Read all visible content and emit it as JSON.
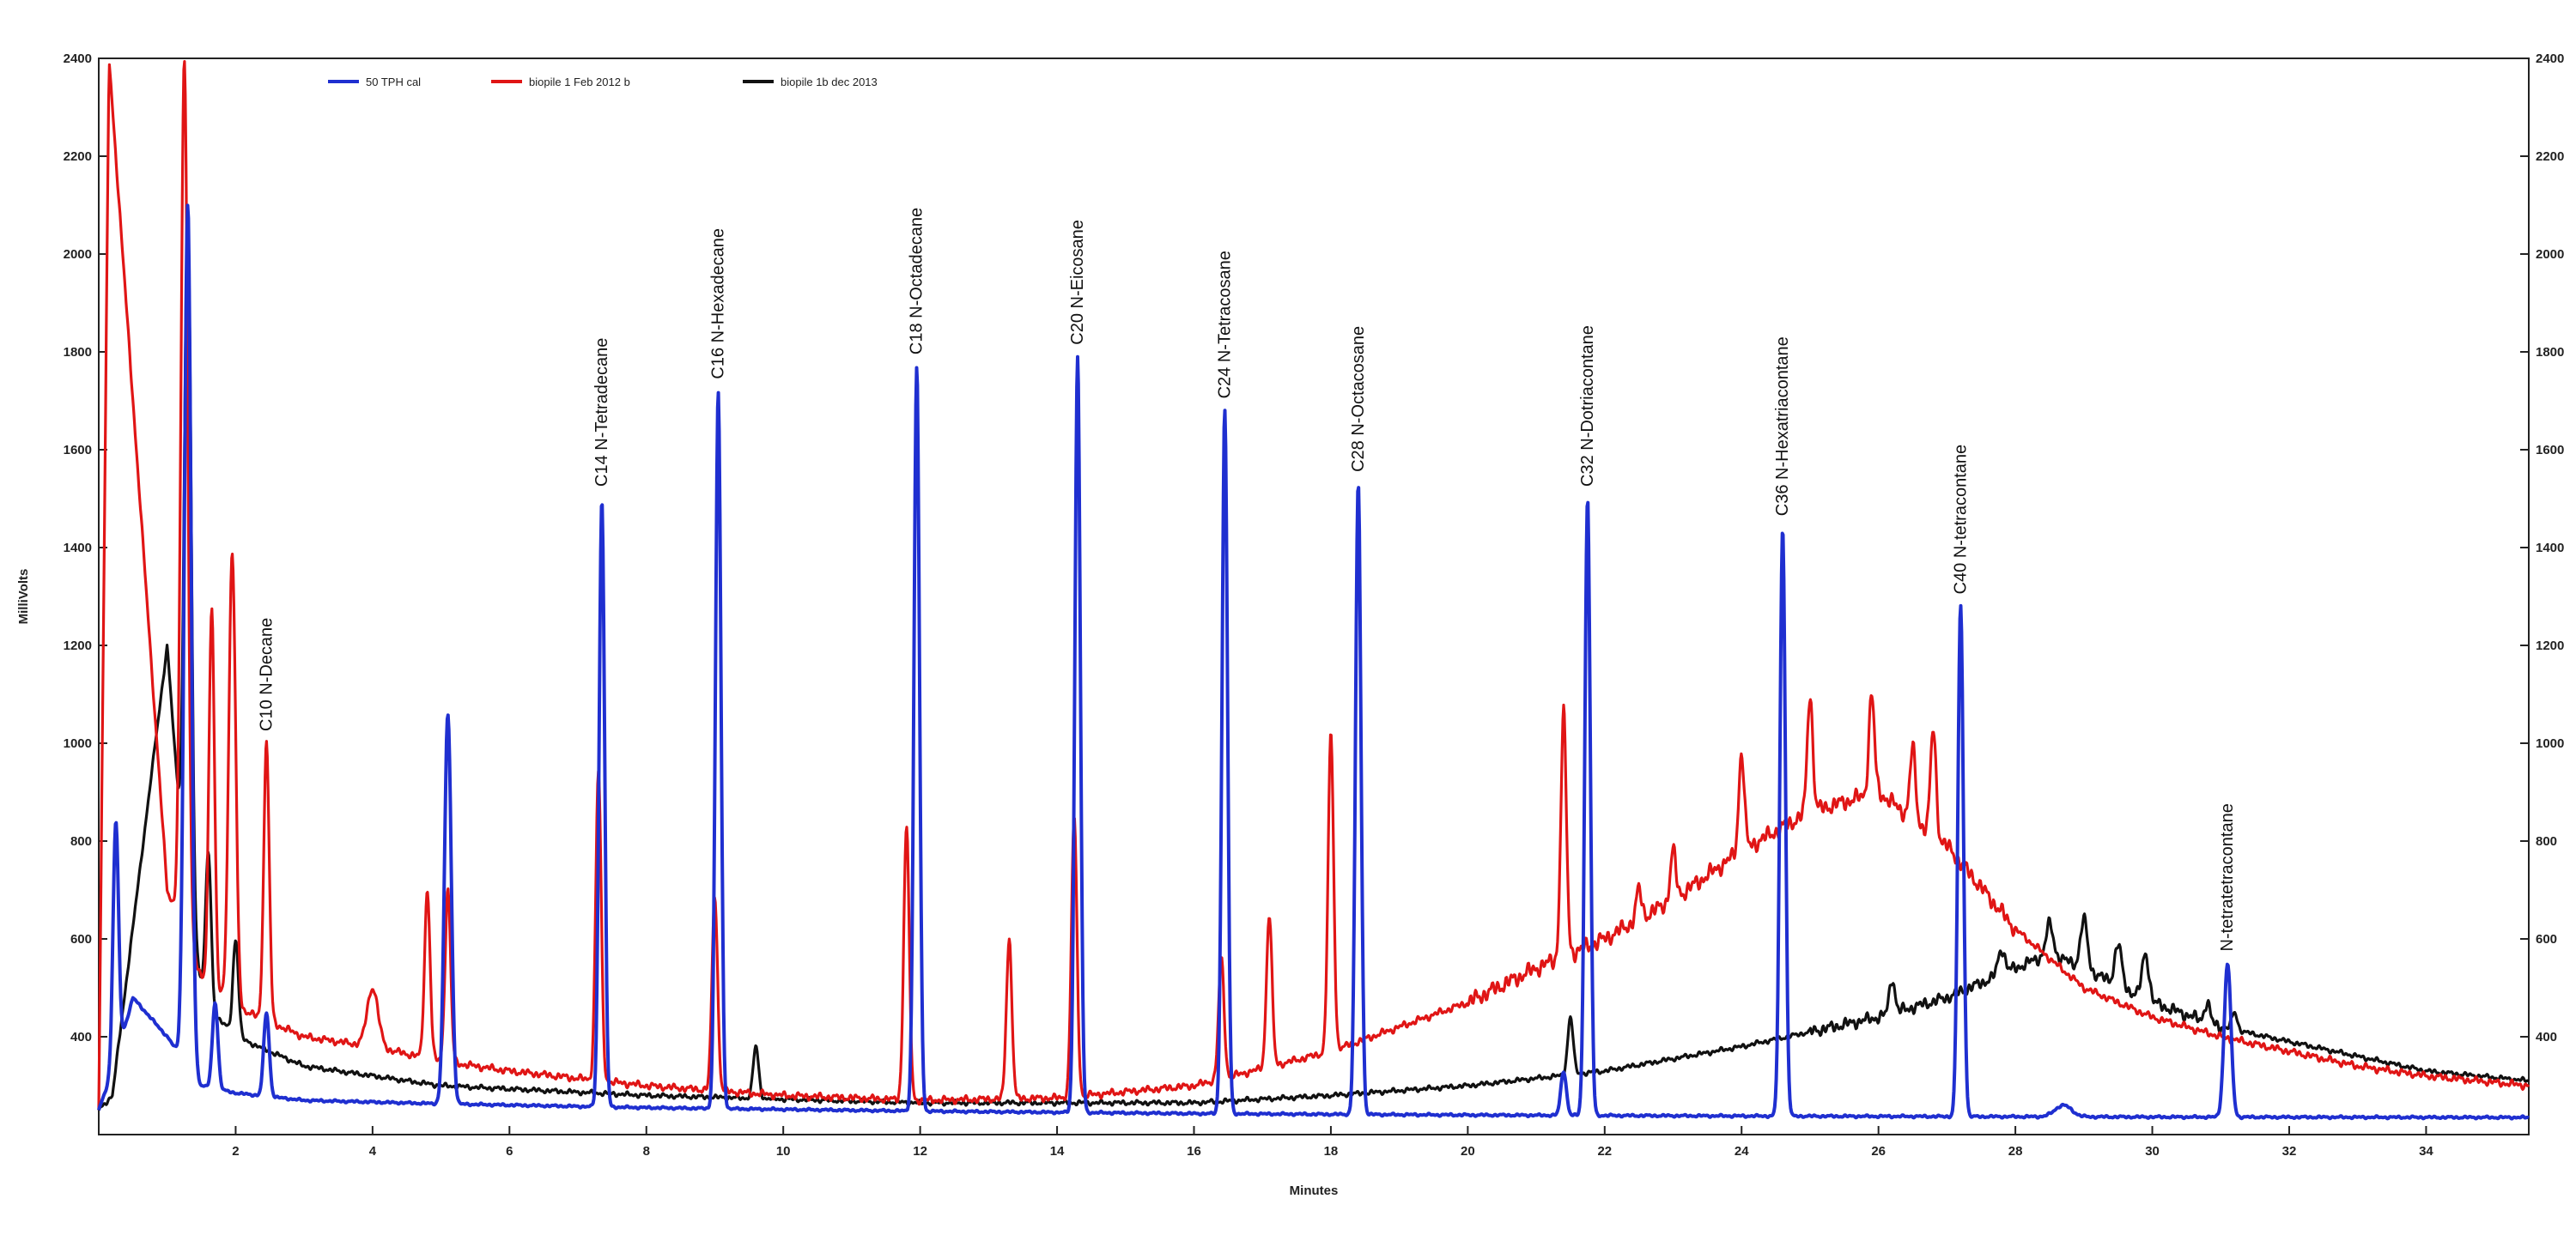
{
  "chart_data": {
    "type": "line",
    "xlabel": "Minutes",
    "ylabel": "MilliVolts",
    "xlim": [
      0,
      35.5
    ],
    "ylim": [
      200,
      2400
    ],
    "x_ticks": [
      2,
      4,
      6,
      8,
      10,
      12,
      14,
      16,
      18,
      20,
      22,
      24,
      26,
      28,
      30,
      32,
      34
    ],
    "y_ticks": [
      400,
      600,
      800,
      1000,
      1200,
      1400,
      1600,
      1800,
      2000,
      2200,
      2400
    ],
    "legend_position": "top-left",
    "series": [
      {
        "name": "50 TPH cal",
        "color": "#1f2fd0",
        "baseline": [
          [
            0,
            250
          ],
          [
            0.2,
            330
          ],
          [
            0.5,
            480
          ],
          [
            1.0,
            400
          ],
          [
            1.5,
            300
          ],
          [
            2,
            285
          ],
          [
            3,
            270
          ],
          [
            5,
            263
          ],
          [
            8,
            255
          ],
          [
            12,
            248
          ],
          [
            16,
            243
          ],
          [
            20,
            240
          ],
          [
            24,
            238
          ],
          [
            30,
            236
          ],
          [
            35.5,
            235
          ]
        ],
        "peaks": [
          [
            0.25,
            840,
            0.04
          ],
          [
            1.3,
            2100,
            0.05
          ],
          [
            1.7,
            470,
            0.04
          ],
          [
            2.45,
            450,
            0.04
          ],
          [
            5.1,
            1060,
            0.05
          ],
          [
            7.35,
            1500,
            0.04
          ],
          [
            9.05,
            1720,
            0.04
          ],
          [
            11.95,
            1770,
            0.04
          ],
          [
            14.3,
            1790,
            0.04
          ],
          [
            16.45,
            1680,
            0.04
          ],
          [
            18.4,
            1530,
            0.04
          ],
          [
            21.4,
            330,
            0.04
          ],
          [
            21.75,
            1500,
            0.04
          ],
          [
            24.6,
            1440,
            0.04
          ],
          [
            27.2,
            1280,
            0.04
          ],
          [
            28.7,
            260,
            0.12
          ],
          [
            31.1,
            550,
            0.05
          ]
        ]
      },
      {
        "name": "biopile 1 Feb 2012 b",
        "color": "#e01515",
        "baseline": [
          [
            0,
            250
          ],
          [
            0.15,
            2400
          ],
          [
            1.0,
            700
          ],
          [
            1.5,
            520
          ],
          [
            2,
            460
          ],
          [
            3,
            400
          ],
          [
            4,
            380
          ],
          [
            5,
            350
          ],
          [
            6,
            330
          ],
          [
            8,
            300
          ],
          [
            10,
            280
          ],
          [
            12,
            270
          ],
          [
            14,
            275
          ],
          [
            16,
            300
          ],
          [
            18,
            370
          ],
          [
            20,
            470
          ],
          [
            21,
            540
          ],
          [
            22,
            600
          ],
          [
            23,
            680
          ],
          [
            24,
            780
          ],
          [
            25,
            860
          ],
          [
            26,
            900
          ],
          [
            27,
            790
          ],
          [
            28,
            620
          ],
          [
            29,
            500
          ],
          [
            30,
            440
          ],
          [
            31,
            400
          ],
          [
            32,
            370
          ],
          [
            33,
            340
          ],
          [
            34,
            320
          ],
          [
            35.5,
            300
          ]
        ],
        "peaks": [
          [
            1.25,
            2400,
            0.05
          ],
          [
            1.65,
            1280,
            0.04
          ],
          [
            1.95,
            1390,
            0.05
          ],
          [
            2.45,
            1000,
            0.04
          ],
          [
            4.0,
            500,
            0.08
          ],
          [
            4.8,
            700,
            0.04
          ],
          [
            5.1,
            700,
            0.04
          ],
          [
            7.3,
            940,
            0.04
          ],
          [
            9.0,
            690,
            0.04
          ],
          [
            11.8,
            830,
            0.04
          ],
          [
            13.3,
            600,
            0.04
          ],
          [
            14.25,
            850,
            0.04
          ],
          [
            16.4,
            560,
            0.04
          ],
          [
            17.1,
            650,
            0.04
          ],
          [
            18.0,
            1020,
            0.04
          ],
          [
            21.4,
            1060,
            0.04
          ],
          [
            22.5,
            700,
            0.04
          ],
          [
            23.0,
            780,
            0.04
          ],
          [
            24.0,
            980,
            0.04
          ],
          [
            25.0,
            1100,
            0.04
          ],
          [
            25.9,
            1100,
            0.04
          ],
          [
            26.5,
            990,
            0.04
          ],
          [
            26.8,
            1030,
            0.04
          ]
        ]
      },
      {
        "name": "biopile 1b dec 2013",
        "color": "#111111",
        "baseline": [
          [
            0,
            250
          ],
          [
            0.2,
            280
          ],
          [
            1.0,
            1200
          ],
          [
            1.3,
            620
          ],
          [
            1.6,
            460
          ],
          [
            2,
            400
          ],
          [
            3,
            340
          ],
          [
            5,
            300
          ],
          [
            8,
            280
          ],
          [
            12,
            265
          ],
          [
            16,
            265
          ],
          [
            18,
            280
          ],
          [
            20,
            300
          ],
          [
            22,
            330
          ],
          [
            24,
            380
          ],
          [
            26,
            440
          ],
          [
            27,
            480
          ],
          [
            28,
            540
          ],
          [
            28.5,
            570
          ],
          [
            29,
            540
          ],
          [
            30,
            470
          ],
          [
            31,
            420
          ],
          [
            32,
            390
          ],
          [
            33,
            360
          ],
          [
            34,
            330
          ],
          [
            35.5,
            310
          ]
        ],
        "peaks": [
          [
            1.3,
            2080,
            0.05
          ],
          [
            1.6,
            780,
            0.04
          ],
          [
            2.0,
            600,
            0.04
          ],
          [
            9.6,
            380,
            0.04
          ],
          [
            21.5,
            440,
            0.04
          ],
          [
            26.2,
            520,
            0.04
          ],
          [
            27.8,
            580,
            0.05
          ],
          [
            28.5,
            630,
            0.05
          ],
          [
            29.0,
            640,
            0.05
          ],
          [
            29.5,
            590,
            0.05
          ],
          [
            29.9,
            570,
            0.05
          ],
          [
            30.8,
            470,
            0.04
          ],
          [
            31.2,
            450,
            0.04
          ]
        ]
      }
    ],
    "annotations": [
      {
        "text": "C10 N-Decane",
        "x": 2.45,
        "y": 1000
      },
      {
        "text": "C14 N-Tetradecane",
        "x": 7.35,
        "y": 1500
      },
      {
        "text": "C16 N-Hexadecane",
        "x": 9.05,
        "y": 1720
      },
      {
        "text": "C18 N-Octadecane",
        "x": 11.95,
        "y": 1770
      },
      {
        "text": "C20 N-Eicosane",
        "x": 14.3,
        "y": 1790
      },
      {
        "text": "C24 N-Tetracosane",
        "x": 16.45,
        "y": 1680
      },
      {
        "text": "C28 N-Octacosane",
        "x": 18.4,
        "y": 1530
      },
      {
        "text": "C32 N-Dotriacontane",
        "x": 21.75,
        "y": 1500
      },
      {
        "text": "C36 N-Hexatriacontane",
        "x": 24.6,
        "y": 1440
      },
      {
        "text": "C40 N-tetracontane",
        "x": 27.2,
        "y": 1280
      },
      {
        "text": "N-tetratetracontane",
        "x": 31.1,
        "y": 550
      }
    ]
  }
}
